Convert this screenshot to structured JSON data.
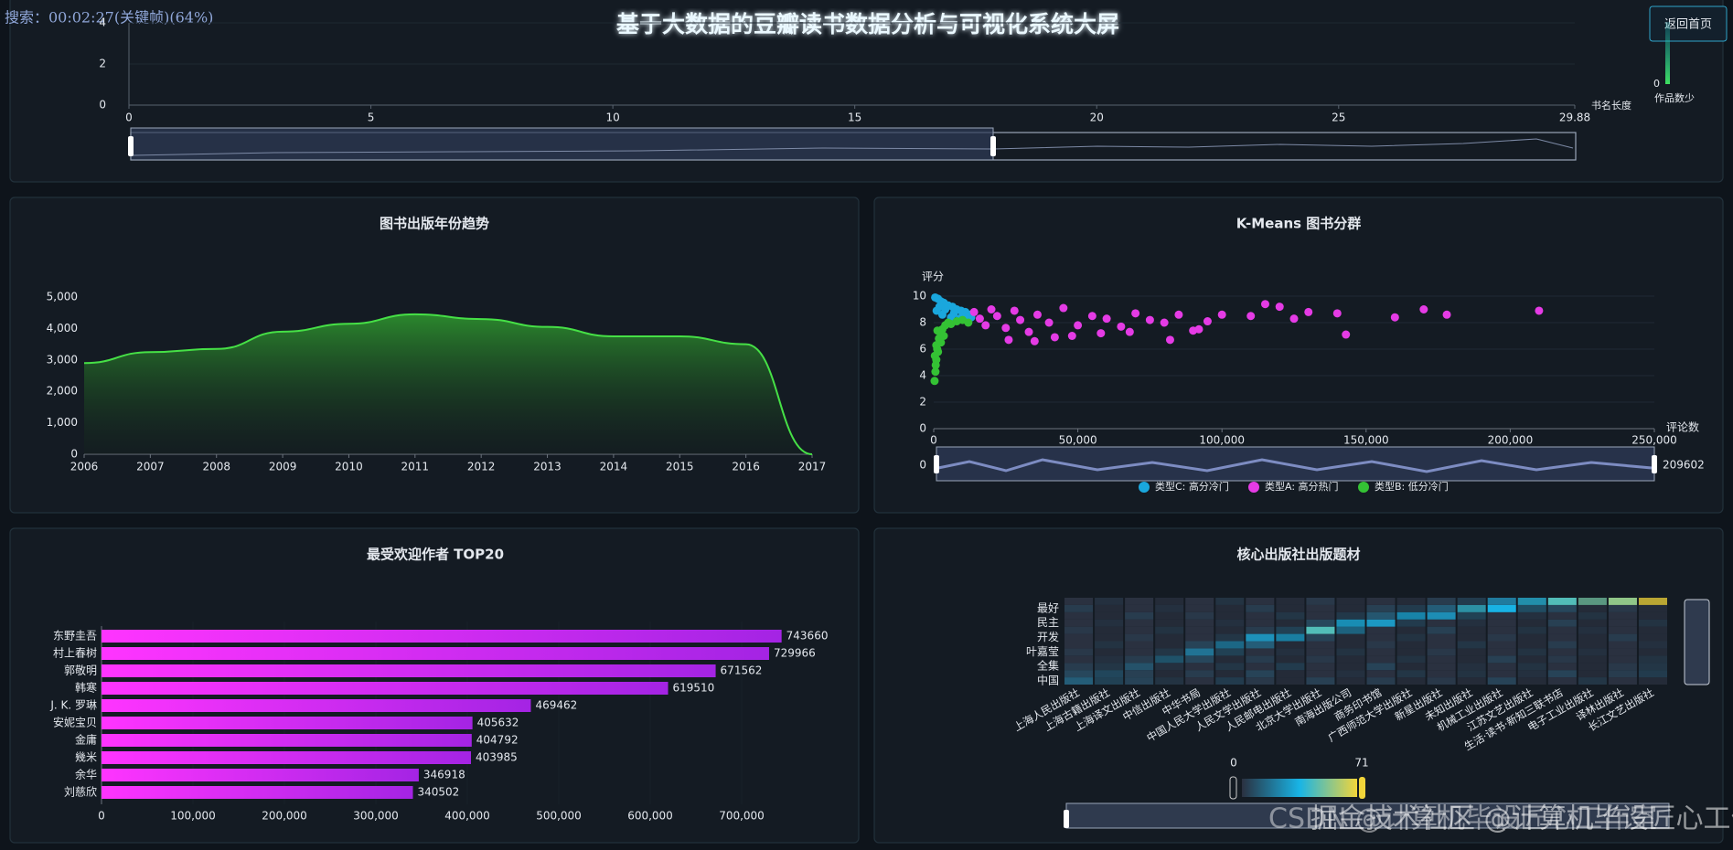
{
  "header": {
    "title": "基于大数据的豆瓣读书数据分析与可视化系统大屏",
    "button": "返回首页",
    "player_status": "搜索：00:02:27(关键帧)(64%)"
  },
  "watermark": [
    "掘金技术社区 @计算机毕设匠心工作室",
    "CSDN @计算机毕设匠心工作室"
  ],
  "chart_data": [
    {
      "type": "line",
      "xlabel": "书名长度",
      "xlim": [
        0,
        29.88
      ],
      "xticks": [
        0,
        5,
        10,
        15,
        20,
        25,
        29.88
      ],
      "ylim": [
        0,
        4
      ],
      "yticks": [
        0,
        2,
        4
      ],
      "visual_map": {
        "min": 0,
        "label": "作品数少"
      }
    },
    {
      "type": "area",
      "title": "图书出版年份趋势",
      "categories": [
        "2006",
        "2007",
        "2008",
        "2009",
        "2010",
        "2011",
        "2012",
        "2013",
        "2014",
        "2015",
        "2016",
        "2017"
      ],
      "values": [
        2900,
        3250,
        3350,
        3900,
        4150,
        4450,
        4300,
        4050,
        3750,
        3750,
        3500,
        0
      ],
      "color": "#46e046",
      "ylim": [
        0,
        5000
      ],
      "yticks": [
        0,
        {
          "value": 1000,
          "label": "1,000"
        },
        {
          "value": 2000,
          "label": "2,000"
        },
        {
          "value": 3000,
          "label": "3,000"
        },
        {
          "value": 4000,
          "label": "4,000"
        },
        {
          "value": 5000,
          "label": "5,000"
        }
      ]
    },
    {
      "type": "scatter",
      "title": "K-Means 图书分群",
      "xlabel": "评论数",
      "ylabel": "评分",
      "xlim": [
        0,
        250000
      ],
      "xticks": [
        0,
        {
          "value": 50000,
          "label": "50,000"
        },
        {
          "value": 100000,
          "label": "100,000"
        },
        {
          "value": 150000,
          "label": "150,000"
        },
        {
          "value": 200000,
          "label": "200,000"
        },
        {
          "value": 250000,
          "label": "250,000"
        }
      ],
      "ylim": [
        0,
        10
      ],
      "yticks": [
        0,
        2,
        4,
        6,
        8,
        10
      ],
      "grid": true,
      "zoom_range": [
        0,
        209602
      ],
      "series": [
        {
          "name": "类型C: 高分冷门",
          "color": "#1aa7dd",
          "x": [
            500,
            1500,
            2500,
            3500,
            5000,
            6500,
            8000,
            9500,
            11000,
            12500,
            2000,
            4000,
            7000,
            10000,
            13000,
            1000,
            3000,
            6000,
            9000,
            12000
          ],
          "values": [
            9.9,
            9.8,
            9.6,
            9.5,
            9.3,
            9.2,
            9.0,
            8.9,
            8.8,
            8.6,
            9.2,
            9.0,
            8.7,
            8.5,
            8.4,
            8.9,
            8.6,
            8.4,
            8.3,
            8.5
          ]
        },
        {
          "name": "类型A: 高分热门",
          "color": "#e53be5",
          "x": [
            14000,
            16000,
            18000,
            20000,
            22000,
            25000,
            28000,
            30000,
            33000,
            36000,
            40000,
            45000,
            50000,
            55000,
            60000,
            65000,
            70000,
            75000,
            80000,
            85000,
            90000,
            95000,
            100000,
            110000,
            115000,
            120000,
            125000,
            130000,
            140000,
            143000,
            160000,
            170000,
            178000,
            210000,
            26000,
            35000,
            42000,
            48000,
            58000,
            68000,
            82000,
            92000
          ],
          "values": [
            8.8,
            8.3,
            7.8,
            9.0,
            8.5,
            7.6,
            8.9,
            8.2,
            7.3,
            8.6,
            8.0,
            9.1,
            7.8,
            8.5,
            8.3,
            7.7,
            8.7,
            8.2,
            8.0,
            8.6,
            7.4,
            8.1,
            8.6,
            8.5,
            9.4,
            9.2,
            8.3,
            8.8,
            8.7,
            7.1,
            8.4,
            9.0,
            8.6,
            8.9,
            6.7,
            6.6,
            6.9,
            7.0,
            7.2,
            7.3,
            6.7,
            7.5
          ]
        },
        {
          "name": "类型B: 低分冷门",
          "color": "#34c234",
          "x": [
            300,
            600,
            900,
            1200,
            1800,
            2400,
            3000,
            4000,
            5000,
            6000,
            8000,
            10000,
            12000,
            700,
            1500,
            2500,
            3500,
            400,
            900,
            1300
          ],
          "values": [
            3.6,
            4.3,
            5.2,
            6.0,
            6.8,
            7.2,
            7.5,
            7.8,
            8.0,
            7.9,
            8.1,
            8.2,
            8.0,
            4.8,
            5.8,
            6.5,
            7.0,
            5.5,
            6.3,
            7.4
          ]
        }
      ]
    },
    {
      "type": "hbar",
      "title": "最受欢迎作者 TOP20",
      "categories": [
        "东野圭吾",
        "村上春树",
        "郭敬明",
        "韩寒",
        "J. K. 罗琳",
        "安妮宝贝",
        "金庸",
        "幾米",
        "余华",
        "刘慈欣"
      ],
      "values": [
        743660,
        729966,
        671562,
        619510,
        469462,
        405632,
        404792,
        403985,
        346918,
        340502
      ],
      "colors": [
        "#ff34ff",
        "#a424e4"
      ],
      "xlim": [
        0,
        800000
      ],
      "xticks": [
        0,
        {
          "value": 100000,
          "label": "100,000"
        },
        {
          "value": 200000,
          "label": "200,000"
        },
        {
          "value": 300000,
          "label": "300,000"
        },
        {
          "value": 400000,
          "label": "400,000"
        },
        {
          "value": 500000,
          "label": "500,000"
        },
        {
          "value": 600000,
          "label": "600,000"
        },
        {
          "value": 700000,
          "label": "700,000"
        }
      ]
    },
    {
      "type": "heatmap",
      "title": "核心出版社出版题材",
      "x": [
        "上海人民出版社",
        "上海古籍出版社",
        "上海译文出版社",
        "中信出版社",
        "中华书局",
        "中国人民大学出版社",
        "人民文学出版社",
        "人民邮电出版社",
        "北京大学出版社",
        "南海出版公司",
        "商务印书馆",
        "广西师范大学出版社",
        "新星出版社",
        "未知出版社",
        "机械工业出版社",
        "江苏文艺出版社",
        "生活·读书·新知三联书店",
        "电子工业出版社",
        "译林出版社",
        "长江文艺出版社"
      ],
      "y": [
        "中国",
        null,
        "全集",
        null,
        "叶嘉莹",
        null,
        "开发",
        null,
        "民主",
        null,
        "最好",
        null
      ],
      "values": [
        [
          12,
          8,
          5,
          3,
          0,
          6,
          2,
          0,
          4,
          0,
          3,
          0,
          2,
          0,
          5,
          0,
          0,
          4,
          0,
          0
        ],
        [
          6,
          10,
          4,
          0,
          3,
          0,
          5,
          0,
          0,
          2,
          0,
          4,
          0,
          3,
          0,
          2,
          5,
          0,
          3,
          6
        ],
        [
          3,
          4,
          9,
          2,
          0,
          4,
          0,
          6,
          0,
          0,
          5,
          0,
          0,
          2,
          0,
          3,
          0,
          0,
          2,
          4
        ],
        [
          0,
          2,
          3,
          14,
          6,
          0,
          3,
          0,
          2,
          0,
          0,
          3,
          0,
          0,
          4,
          0,
          2,
          0,
          0,
          3
        ],
        [
          2,
          0,
          0,
          4,
          18,
          8,
          0,
          2,
          0,
          3,
          0,
          0,
          2,
          0,
          0,
          3,
          0,
          2,
          0,
          0
        ],
        [
          0,
          3,
          0,
          0,
          5,
          22,
          12,
          0,
          0,
          0,
          2,
          0,
          0,
          4,
          0,
          0,
          3,
          0,
          0,
          2
        ],
        [
          0,
          0,
          2,
          0,
          0,
          4,
          26,
          30,
          5,
          0,
          0,
          3,
          0,
          0,
          2,
          0,
          0,
          0,
          3,
          0
        ],
        [
          2,
          0,
          0,
          3,
          0,
          0,
          3,
          8,
          45,
          20,
          0,
          0,
          4,
          0,
          0,
          3,
          0,
          2,
          0,
          0
        ],
        [
          0,
          2,
          0,
          0,
          0,
          2,
          0,
          0,
          6,
          36,
          28,
          6,
          0,
          2,
          0,
          0,
          4,
          0,
          0,
          3
        ],
        [
          0,
          0,
          3,
          0,
          2,
          0,
          0,
          4,
          0,
          5,
          10,
          32,
          25,
          8,
          0,
          2,
          0,
          3,
          0,
          0
        ],
        [
          3,
          0,
          0,
          2,
          0,
          0,
          3,
          0,
          0,
          0,
          4,
          6,
          12,
          40,
          35,
          12,
          6,
          0,
          2,
          0
        ],
        [
          0,
          2,
          0,
          0,
          0,
          3,
          0,
          0,
          2,
          0,
          0,
          0,
          3,
          6,
          20,
          38,
          45,
          50,
          55,
          71
        ]
      ],
      "visual_map": {
        "min": 0,
        "max": 71,
        "colors": [
          "#2a3140",
          "#18b4e6",
          "#f2d53a"
        ]
      }
    }
  ]
}
